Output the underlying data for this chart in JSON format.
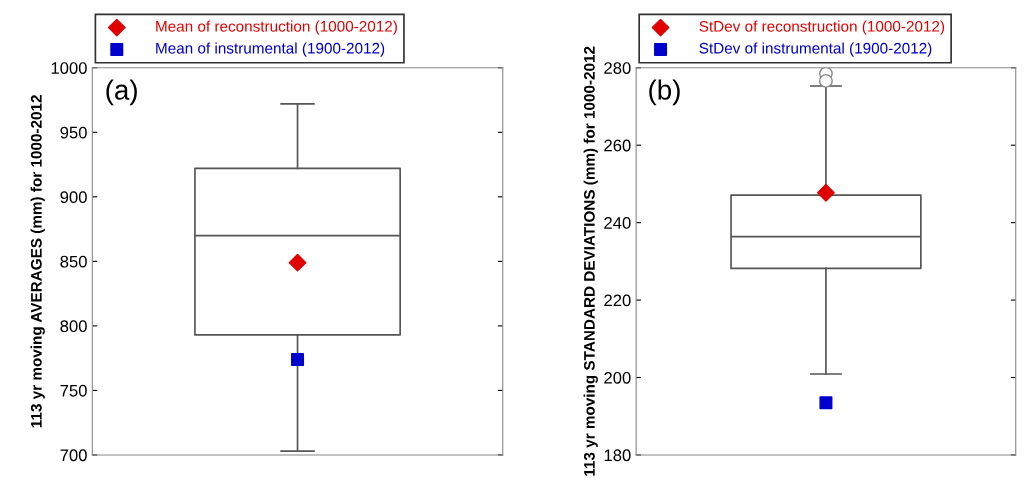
{
  "chart_data": [
    {
      "type": "box",
      "ylabel": "113 yr moving AVERAGES (mm) for 1000-2012",
      "annotations": [
        "(a)"
      ],
      "categories": [
        null
      ],
      "boxes": [
        {
          "low": 703,
          "q1": 793,
          "median": 870,
          "q3": 922,
          "high": 972
        }
      ],
      "series": [
        {
          "type": "scatter",
          "name": "Mean of reconstruction (1000-2012)",
          "color": "#e00000",
          "marker": "diamond",
          "values": [
            849
          ]
        },
        {
          "type": "scatter",
          "name": "Mean of instrumental (1900-2012)",
          "color": "#0000cc",
          "marker": "square",
          "values": [
            774
          ]
        }
      ],
      "ylim": [
        700,
        1000
      ],
      "yticks": [
        700,
        750,
        800,
        850,
        900,
        950,
        1000
      ],
      "legend": "top",
      "grid": false
    },
    {
      "type": "box",
      "ylabel": "113 yr moving STANDARD DEVIATIONS (mm) for 1000-2012",
      "annotations": [
        "(b)"
      ],
      "categories": [
        null
      ],
      "boxes": [
        {
          "low": 200.9,
          "q1": 228.2,
          "median": 236.4,
          "q3": 247.1,
          "high": 275.3,
          "outliers": [
            278.5,
            276.6
          ]
        }
      ],
      "series": [
        {
          "type": "scatter",
          "name": "StDev of reconstruction (1000-2012)",
          "color": "#e00000",
          "marker": "diamond",
          "values": [
            247.7
          ]
        },
        {
          "type": "scatter",
          "name": "StDev of instrumental (1900-2012)",
          "color": "#0000cc",
          "marker": "square",
          "values": [
            193.5
          ]
        }
      ],
      "ylim": [
        180,
        280
      ],
      "yticks": [
        180,
        200,
        220,
        240,
        260,
        280
      ],
      "legend": "top",
      "grid": false
    }
  ]
}
